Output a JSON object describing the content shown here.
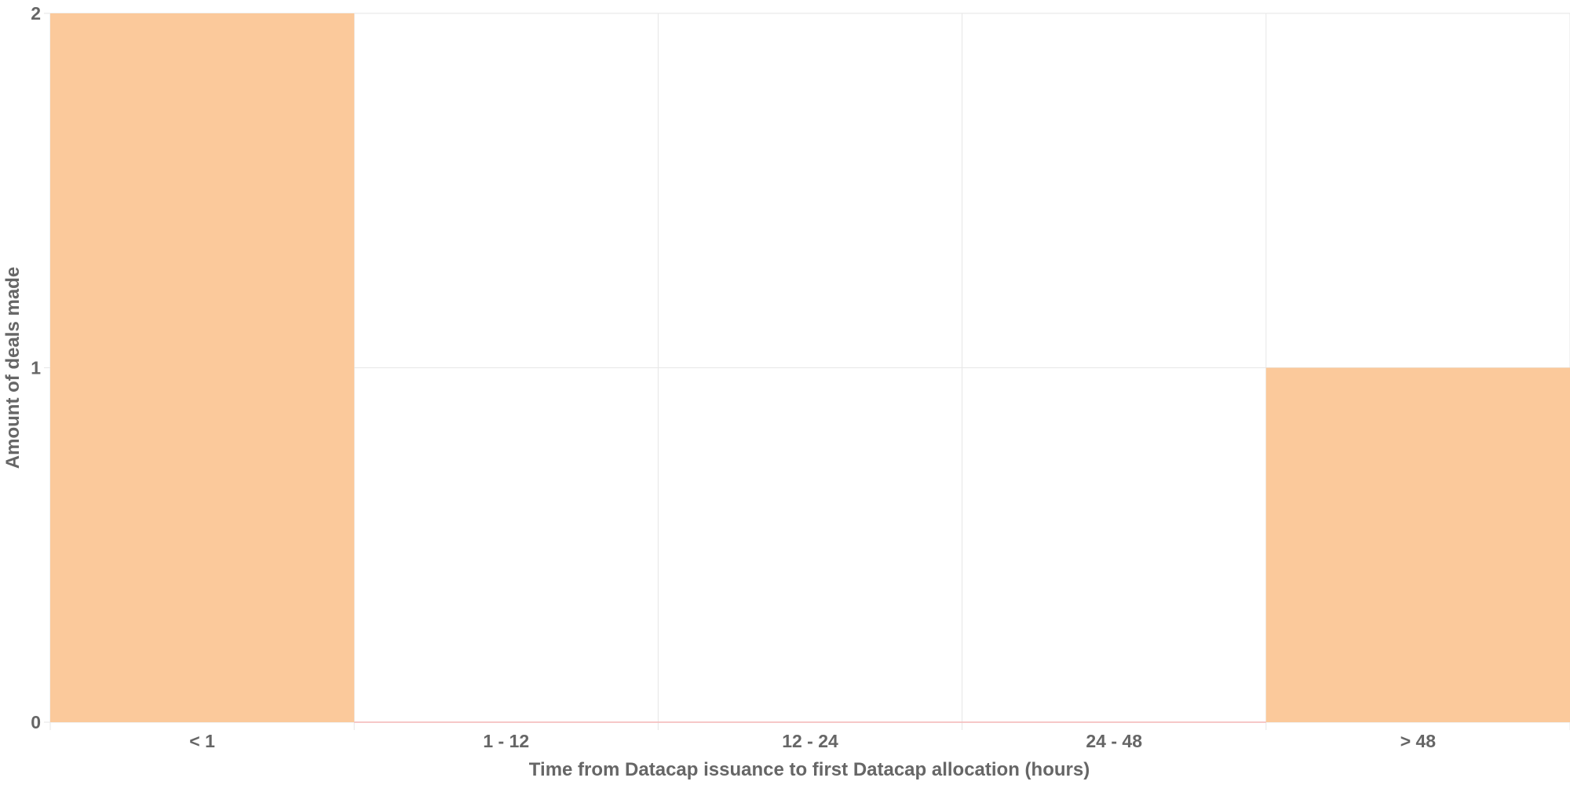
{
  "chart_data": {
    "type": "bar",
    "categories": [
      "< 1",
      "1 - 12",
      "12 - 24",
      "24 - 48",
      "> 48"
    ],
    "values": [
      2,
      0,
      0,
      0,
      1
    ],
    "title": "",
    "xlabel": "Time from Datacap issuance to first Datacap allocation (hours)",
    "ylabel": "Amount of deals made",
    "ylim": [
      0,
      2
    ],
    "yticks": [
      0,
      1,
      2
    ],
    "grid": true,
    "bar_color": "#fbc99b",
    "zero_bar_color": "#f4b6b6"
  }
}
